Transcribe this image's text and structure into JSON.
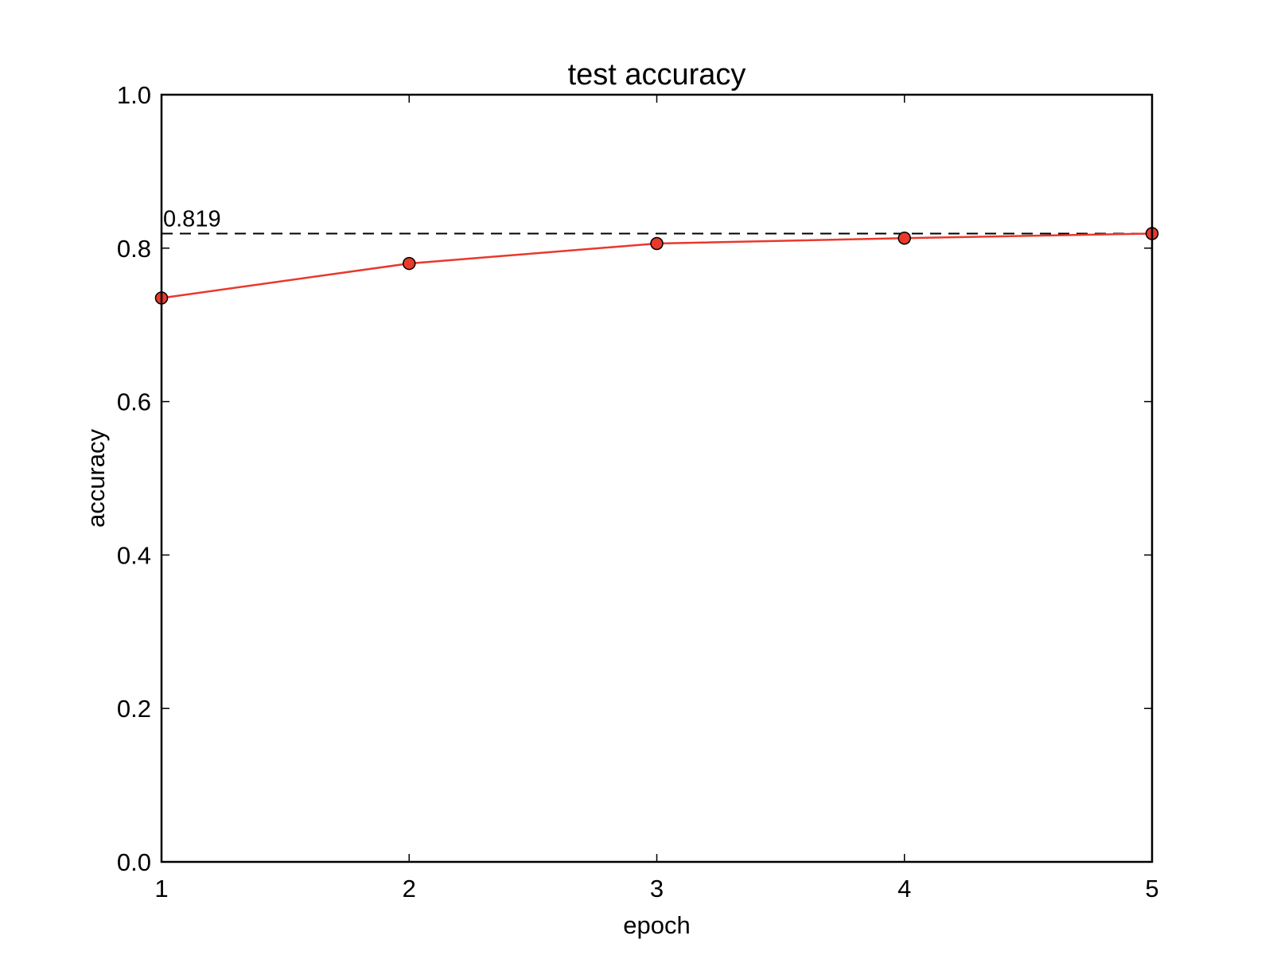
{
  "chart_data": {
    "type": "line",
    "title": "test accuracy",
    "xlabel": "epoch",
    "ylabel": "accuracy",
    "xlim": [
      1,
      5
    ],
    "ylim": [
      0.0,
      1.0
    ],
    "x_ticks": [
      1,
      2,
      3,
      4,
      5
    ],
    "x_tick_labels": [
      "1",
      "2",
      "3",
      "4",
      "5"
    ],
    "y_ticks": [
      0.0,
      0.2,
      0.4,
      0.6,
      0.8,
      1.0
    ],
    "y_tick_labels": [
      "0.0",
      "0.2",
      "0.4",
      "0.6",
      "0.8",
      "1.0"
    ],
    "grid": false,
    "series": [
      {
        "x": [
          1,
          2,
          3,
          4,
          5
        ],
        "values": [
          0.735,
          0.78,
          0.806,
          0.813,
          0.819
        ],
        "color": "#e8392c",
        "marker": "circle"
      }
    ],
    "reference_line": {
      "value": 0.819,
      "label": "0.819",
      "style": "dashed",
      "color": "#000000"
    }
  }
}
